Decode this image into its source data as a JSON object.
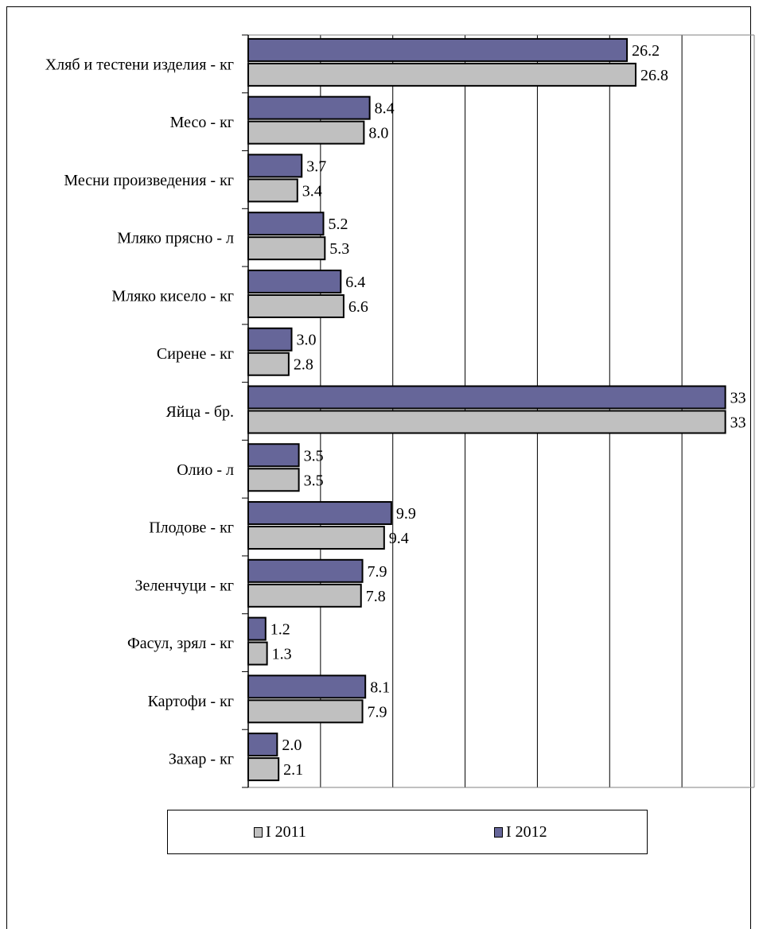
{
  "chart_data": {
    "type": "bar",
    "orientation": "horizontal",
    "categories": [
      "Хляб и тестени изделия - кг",
      "Месо - кг",
      "Месни произведения  - кг",
      "Мляко прясно - л",
      "Мляко кисело - кг",
      "Сирене - кг",
      "Яйца - бр.",
      "Олио - л",
      "Плодове - кг",
      "Зеленчуци - кг",
      "Фасул, зрял - кг",
      "Картофи - кг",
      "Захар - кг"
    ],
    "series": [
      {
        "name": "I  2012",
        "color": "#666699",
        "values": [
          26.2,
          8.4,
          3.7,
          5.2,
          6.4,
          3.0,
          33,
          3.5,
          9.9,
          7.9,
          1.2,
          8.1,
          2.0
        ],
        "labels": [
          "26.2",
          "8.4",
          "3.7",
          "5.2",
          "6.4",
          "3.0",
          "33",
          "3.5",
          "9.9",
          "7.9",
          "1.2",
          "8.1",
          "2.0"
        ]
      },
      {
        "name": "I  2011",
        "color": "#c0c0c0",
        "values": [
          26.8,
          8.0,
          3.4,
          5.3,
          6.6,
          2.8,
          33,
          3.5,
          9.4,
          7.8,
          1.3,
          7.9,
          2.1
        ],
        "labels": [
          "26.8",
          "8.0",
          "3.4",
          "5.3",
          "6.6",
          "2.8",
          "33",
          "3.5",
          "9.4",
          "7.8",
          "1.3",
          "7.9",
          "2.1"
        ]
      }
    ],
    "xlim": [
      0,
      35
    ],
    "grid": true,
    "legend_position": "bottom"
  },
  "legend": {
    "items": [
      {
        "label": "I  2011",
        "color": "#c0c0c0"
      },
      {
        "label": "I  2012",
        "color": "#666699"
      }
    ]
  }
}
